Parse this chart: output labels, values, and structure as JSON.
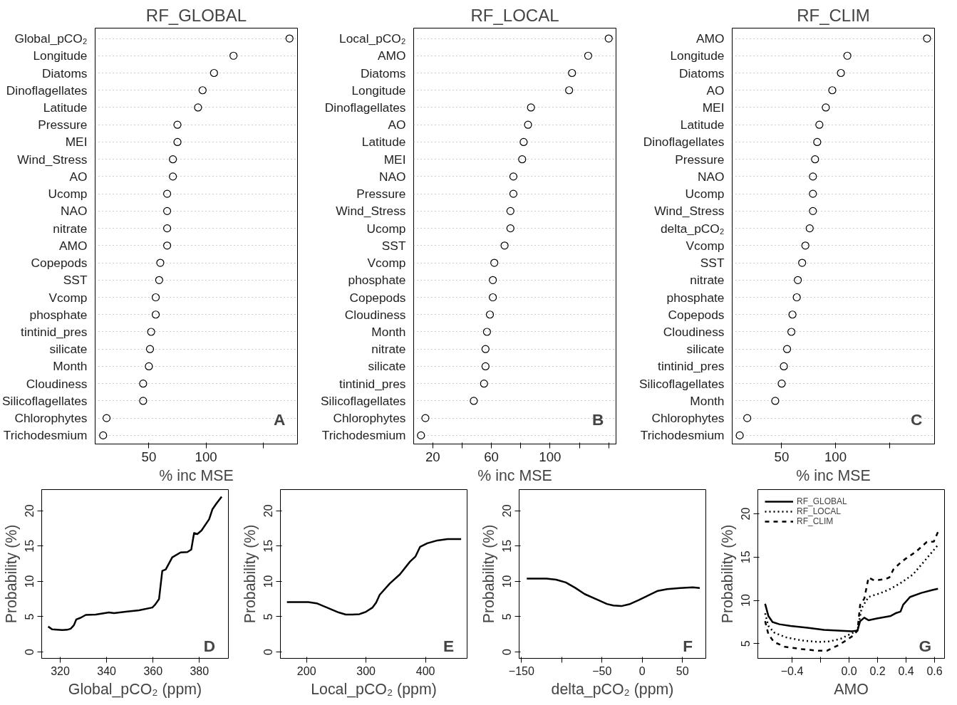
{
  "chart_data": [
    {
      "type": "scatter",
      "orientation": "horizontal",
      "title": "RF_GLOBAL",
      "xlabel": "% inc MSE",
      "marker": "circle",
      "grid": "y",
      "color": "#000000",
      "categories": [
        "Global_pCO₂",
        "Longitude",
        "Diatoms",
        "Dinoflagellates",
        "Latitude",
        "Pressure",
        "MEI",
        "Wind_Stress",
        "AO",
        "Ucomp",
        "NAO",
        "nitrate",
        "AMO",
        "Copepods",
        "SST",
        "Vcomp",
        "phosphate",
        "tintinid_pres",
        "silicate",
        "Month",
        "Cloudiness",
        "Silicoflagellates",
        "Chlorophytes",
        "Trichodesmium"
      ],
      "values": [
        173,
        124,
        107,
        97,
        93,
        75,
        75,
        71,
        71,
        66,
        66,
        66,
        66,
        60,
        59,
        56,
        56,
        52,
        51,
        50,
        45,
        45,
        13,
        10
      ],
      "xlim": [
        3,
        180
      ],
      "xticks": [
        50,
        100,
        {
          "value": 150,
          "label": null
        }
      ],
      "annotations": [
        "A"
      ]
    },
    {
      "type": "scatter",
      "orientation": "horizontal",
      "title": "RF_LOCAL",
      "xlabel": "% inc MSE",
      "marker": "circle",
      "grid": "y",
      "color": "#000000",
      "categories": [
        "Local_pCO₂",
        "AMO",
        "Diatoms",
        "Longitude",
        "Dinoflagellates",
        "AO",
        "Latitude",
        "MEI",
        "NAO",
        "Pressure",
        "Wind_Stress",
        "Ucomp",
        "SST",
        "Vcomp",
        "phosphate",
        "Copepods",
        "Cloudiness",
        "Month",
        "nitrate",
        "silicate",
        "tintinid_pres",
        "Silicoflagellates",
        "Chlorophytes",
        "Trichodesmium"
      ],
      "values": [
        140,
        126,
        115,
        113,
        87,
        85,
        82,
        81,
        75,
        75,
        73,
        73,
        69,
        62,
        61,
        61,
        59,
        57,
        56,
        56,
        55,
        48,
        15,
        12
      ],
      "xlim": [
        7,
        145
      ],
      "xticks": [
        20,
        {
          "value": 40,
          "label": null
        },
        60,
        {
          "value": 80,
          "label": null
        },
        100,
        {
          "value": 120,
          "label": null
        },
        {
          "value": 140,
          "label": null
        }
      ],
      "annotations": [
        "B"
      ]
    },
    {
      "type": "scatter",
      "orientation": "horizontal",
      "title": "RF_CLIM",
      "xlabel": "% inc MSE",
      "marker": "circle",
      "grid": "y",
      "color": "#000000",
      "categories": [
        "AMO",
        "Longitude",
        "Diatoms",
        "AO",
        "MEI",
        "Latitude",
        "Dinoflagellates",
        "Pressure",
        "NAO",
        "Ucomp",
        "Wind_Stress",
        "delta_pCO₂",
        "Vcomp",
        "SST",
        "nitrate",
        "phosphate",
        "Copepods",
        "Cloudiness",
        "silicate",
        "tintinid_pres",
        "Silicoflagellates",
        "Month",
        "Chlorophytes",
        "Trichodesmium"
      ],
      "values": [
        185,
        111,
        105,
        97,
        91,
        85,
        83,
        81,
        79,
        79,
        79,
        76,
        72,
        69,
        65,
        64,
        60,
        59,
        55,
        52,
        50,
        44,
        18,
        11
      ],
      "xlim": [
        4,
        192
      ],
      "xticks": [
        50,
        100,
        {
          "value": 150,
          "label": null
        }
      ],
      "annotations": [
        "C"
      ]
    },
    {
      "type": "line",
      "xlabel": "Global_pCO₂ (ppm)",
      "ylabel": "Probability (%)",
      "xlim": [
        312,
        392.5
      ],
      "ylim": [
        -0.9,
        23
      ],
      "xticks": [
        320,
        340,
        360,
        380
      ],
      "yticks": [
        0,
        5,
        10,
        15,
        20
      ],
      "annotations": [
        "D"
      ],
      "series": [
        {
          "color": "#000000",
          "line_style": "solid",
          "x": [
            314.8,
            316.5,
            320.9,
            323,
            324.5,
            325.9,
            326.9,
            328.8,
            331,
            335.3,
            341,
            343.2,
            348.2,
            354,
            359.7,
            360.9,
            362.6,
            364,
            365.5,
            368.3,
            371.9,
            374.8,
            376.5,
            377.7,
            379.1,
            380.9,
            384.2,
            385.6,
            387.3,
            389.6
          ],
          "values": [
            3.6,
            3.2,
            3.1,
            3.15,
            3.3,
            3.8,
            4.6,
            4.85,
            5.25,
            5.3,
            5.6,
            5.5,
            5.7,
            5.9,
            6.3,
            6.7,
            7.5,
            11.5,
            11.7,
            13.4,
            14.1,
            14.15,
            14.5,
            16.85,
            16.7,
            17.2,
            18.8,
            20.2,
            21.0,
            22.0
          ]
        }
      ]
    },
    {
      "type": "line",
      "xlabel": "Local_pCO₂ (ppm)",
      "ylabel": "Probability (%)",
      "xlim": [
        156,
        470
      ],
      "ylim": [
        -0.9,
        23
      ],
      "xticks": [
        200,
        300,
        400
      ],
      "yticks": [
        0,
        5,
        10,
        15,
        20
      ],
      "annotations": [
        "E"
      ],
      "series": [
        {
          "color": "#000000",
          "line_style": "solid",
          "x": [
            167,
            203,
            217,
            237,
            254,
            266,
            277,
            289,
            300,
            311,
            317,
            323,
            340,
            357,
            374,
            383,
            391,
            403,
            420,
            437,
            460
          ],
          "values": [
            7.07,
            7.07,
            6.9,
            6.2,
            5.6,
            5.3,
            5.3,
            5.36,
            5.7,
            6.3,
            7.0,
            8.1,
            9.7,
            11.0,
            12.8,
            13.5,
            14.9,
            15.4,
            15.8,
            16.0,
            16.0
          ]
        }
      ]
    },
    {
      "type": "line",
      "xlabel": "delta_pCO₂ (ppm)",
      "ylabel": "Probability (%)",
      "xlim": [
        -153,
        79
      ],
      "ylim": [
        -0.9,
        23
      ],
      "xticks": [
        {
          "value": -150,
          "label": "−150"
        },
        {
          "value": -100,
          "label": null
        },
        {
          "value": -50,
          "label": "−50"
        },
        0,
        50
      ],
      "yticks": [
        0,
        5,
        10,
        15,
        20
      ],
      "annotations": [
        "F"
      ],
      "series": [
        {
          "color": "#000000",
          "line_style": "solid",
          "x": [
            -143.5,
            -119,
            -107,
            -95,
            -83.4,
            -71.5,
            -55.7,
            -43.9,
            -36,
            -26,
            -16.2,
            -4.3,
            7.5,
            19.4,
            31.2,
            47,
            62.8,
            71.5
          ],
          "values": [
            10.4,
            10.4,
            10.25,
            9.85,
            9.1,
            8.2,
            7.4,
            6.8,
            6.58,
            6.5,
            6.76,
            7.35,
            8.0,
            8.66,
            8.9,
            9.07,
            9.16,
            9.07
          ]
        }
      ]
    },
    {
      "type": "line",
      "xlabel": "AMO",
      "ylabel": "Probability (%)",
      "xlim": [
        -0.64,
        0.67
      ],
      "ylim": [
        3.3,
        22.8
      ],
      "xticks": [
        {
          "value": -0.4,
          "label": "−0.4"
        },
        {
          "value": -0.2,
          "label": null
        },
        {
          "value": 0,
          "label": "0.0"
        },
        0.2,
        0.4,
        0.6
      ],
      "yticks": [
        5,
        10,
        15,
        20
      ],
      "annotations": [
        "G"
      ],
      "legend": "top left",
      "series": [
        {
          "name": "RF_GLOBAL",
          "color": "#000000",
          "line_style": "solid",
          "x": [
            -0.589,
            -0.566,
            -0.537,
            -0.488,
            -0.41,
            -0.293,
            -0.176,
            -0.078,
            0.02,
            0.059,
            0.078,
            0.107,
            0.137,
            0.195,
            0.293,
            0.332,
            0.361,
            0.38,
            0.429,
            0.507,
            0.585,
            0.624
          ],
          "values": [
            9.6,
            8.2,
            7.5,
            7.24,
            7.05,
            6.83,
            6.6,
            6.5,
            6.42,
            6.5,
            7.6,
            8.0,
            7.7,
            7.9,
            8.2,
            8.55,
            8.7,
            9.5,
            10.4,
            10.86,
            11.2,
            11.34
          ]
        },
        {
          "name": "RF_LOCAL",
          "color": "#000000",
          "line_style": "dotted",
          "x": [
            -0.589,
            -0.566,
            -0.527,
            -0.449,
            -0.332,
            -0.215,
            -0.137,
            -0.059,
            0.02,
            0.059,
            0.088,
            0.137,
            0.215,
            0.293,
            0.371,
            0.449,
            0.527,
            0.624
          ],
          "values": [
            8.5,
            7.05,
            6.3,
            5.75,
            5.37,
            5.19,
            5.26,
            5.56,
            6.2,
            6.5,
            9.1,
            10.4,
            10.8,
            11.34,
            12.1,
            13.0,
            14.5,
            16.4
          ]
        },
        {
          "name": "RF_CLIM",
          "color": "#000000",
          "line_style": "dashed",
          "x": [
            -0.589,
            -0.566,
            -0.527,
            -0.449,
            -0.332,
            -0.215,
            -0.156,
            -0.078,
            -0.02,
            0.029,
            0.059,
            0.078,
            0.107,
            0.137,
            0.176,
            0.254,
            0.283,
            0.312,
            0.371,
            0.41,
            0.468,
            0.546,
            0.595,
            0.624
          ],
          "values": [
            7.6,
            6.1,
            5.19,
            4.63,
            4.37,
            4.18,
            4.18,
            4.8,
            5.37,
            5.93,
            6.5,
            9.5,
            10.2,
            12.65,
            12.3,
            12.46,
            12.65,
            13.6,
            14.5,
            14.96,
            15.6,
            16.75,
            16.8,
            17.9
          ]
        }
      ]
    }
  ]
}
